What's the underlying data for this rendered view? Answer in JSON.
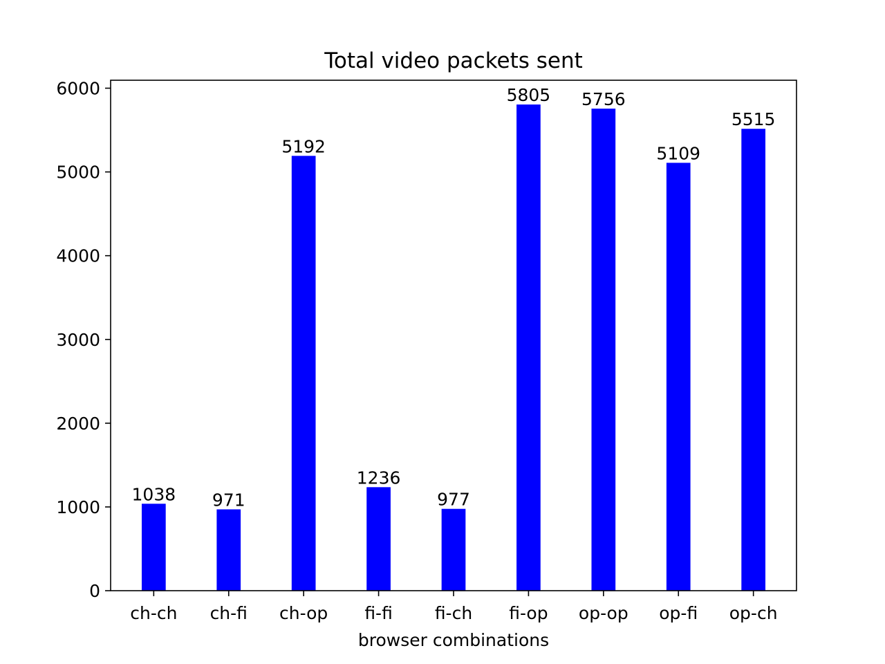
{
  "chart_data": {
    "type": "bar",
    "title": "Total video packets sent",
    "xlabel": "browser combinations",
    "ylabel": "",
    "categories": [
      "ch-ch",
      "ch-fi",
      "ch-op",
      "fi-fi",
      "fi-ch",
      "fi-op",
      "op-op",
      "op-fi",
      "op-ch"
    ],
    "values": [
      1038,
      971,
      5192,
      1236,
      977,
      5805,
      5756,
      5109,
      5515
    ],
    "data_labels": [
      "1038",
      "971",
      "5192",
      "1236",
      "977",
      "5805",
      "5756",
      "5109",
      "5515"
    ],
    "ylim": [
      0,
      6095
    ],
    "yticks": [
      0,
      1000,
      2000,
      3000,
      4000,
      5000,
      6000
    ],
    "ytick_labels": [
      "0",
      "1000",
      "2000",
      "3000",
      "4000",
      "5000",
      "6000"
    ],
    "bar_color": "#0000ff",
    "grid": false,
    "legend": "none"
  }
}
